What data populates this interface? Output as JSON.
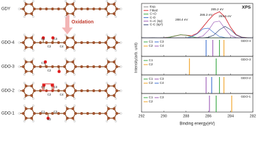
{
  "diagram": {
    "labels": [
      "GDY",
      "GDO-4",
      "GDO-3",
      "GDO-2",
      "GDO-1"
    ],
    "arrow": "Oxidation",
    "atoms": [
      [
        "C1",
        "C2",
        "C3",
        "C4"
      ],
      [
        "C1",
        "C2"
      ],
      [
        "C1",
        "C2",
        "C3",
        "C4"
      ],
      [
        "C1",
        "C2",
        "C3"
      ]
    ]
  },
  "chart_data": [
    {
      "type": "line",
      "title": "XPS",
      "x": [
        292,
        291.5,
        291,
        290.5,
        290,
        289.5,
        289,
        288.5,
        288,
        287.5,
        287,
        286.5,
        286,
        285.5,
        285,
        284.5,
        284,
        283.5,
        283,
        282.5,
        282
      ],
      "xlim": [
        292,
        282
      ],
      "ylim": [
        0,
        1.25
      ],
      "series": [
        {
          "name": "Exp.",
          "color": "#888888",
          "values": [
            0.01,
            0,
            0.01,
            0,
            0.01,
            0.03,
            0.08,
            0.12,
            0.11,
            0.08,
            0.17,
            0.43,
            0.7,
            0.92,
            1.04,
            0.8,
            0.42,
            0.13,
            0.03,
            0.01,
            0
          ]
        },
        {
          "name": "Fitted",
          "color": "#e0303a",
          "values": [
            0,
            0,
            0,
            0,
            0,
            0.02,
            0.07,
            0.12,
            0.1,
            0.08,
            0.18,
            0.42,
            0.69,
            0.93,
            1.03,
            0.82,
            0.41,
            0.12,
            0.02,
            0,
            0
          ]
        },
        {
          "name": "C=O",
          "color": "#3aa845",
          "values": [
            0,
            0,
            0,
            0,
            0,
            0.02,
            0.07,
            0.12,
            0.1,
            0.04,
            0.01,
            0,
            0,
            0,
            0,
            0,
            0,
            0,
            0,
            0,
            0
          ]
        },
        {
          "name": "C-O",
          "color": "#3b6fd0",
          "values": [
            0,
            0,
            0,
            0,
            0,
            0,
            0,
            0,
            0,
            0.04,
            0.16,
            0.35,
            0.38,
            0.2,
            0.05,
            0.01,
            0,
            0,
            0,
            0,
            0
          ]
        },
        {
          "name": "C=C (sp)",
          "color": "#9b59b6",
          "values": [
            0,
            0,
            0,
            0,
            0,
            0,
            0,
            0,
            0,
            0,
            0.01,
            0.07,
            0.29,
            0.62,
            0.66,
            0.36,
            0.09,
            0.01,
            0,
            0,
            0
          ]
        },
        {
          "name": "C-C (sp²)",
          "color": "#2c3e70",
          "values": [
            0,
            0,
            0,
            0,
            0,
            0,
            0,
            0,
            0,
            0,
            0,
            0,
            0.02,
            0.11,
            0.32,
            0.45,
            0.32,
            0.11,
            0.02,
            0,
            0
          ]
        }
      ],
      "annotations": [
        {
          "text": "288.4 eV",
          "x": 288.4
        },
        {
          "text": "286.2 eV",
          "x": 286.2
        },
        {
          "text": "285.2 eV",
          "x": 285.2
        },
        {
          "text": "284.5 eV",
          "x": 284.5
        }
      ]
    },
    {
      "type": "stick",
      "title": "GDO-4",
      "xlim": [
        292,
        282
      ],
      "series": [
        {
          "name": "C1",
          "color": "#3aa845",
          "values": [
            285.0
          ]
        },
        {
          "name": "C2",
          "color": "#f0a020",
          "values": [
            284.6
          ]
        },
        {
          "name": "C3",
          "color": "#3b6fd0",
          "values": [
            286.2
          ]
        },
        {
          "name": "C4",
          "color": "#9b59b6",
          "values": [
            285.6
          ]
        }
      ]
    },
    {
      "type": "stick",
      "title": "GDO-3",
      "xlim": [
        292,
        282
      ],
      "ylabel": "Intensity(arb. unit)",
      "series": [
        {
          "name": "C1",
          "color": "#3aa845",
          "values": [
            285.3
          ]
        },
        {
          "name": "C2",
          "color": "#f0a020",
          "values": [
            287.7
          ]
        }
      ]
    },
    {
      "type": "stick",
      "title": "GDO-2",
      "xlim": [
        292,
        282
      ],
      "series": [
        {
          "name": "C1",
          "color": "#3aa845",
          "values": [
            285.0
          ]
        },
        {
          "name": "C2",
          "color": "#f0a020",
          "values": [
            284.6
          ]
        },
        {
          "name": "C3",
          "color": "#9b59b6",
          "values": [
            286.2
          ]
        },
        {
          "name": "C4",
          "color": "#3b6fd0",
          "values": [
            285.7
          ]
        }
      ]
    },
    {
      "type": "stick",
      "title": "GDO-1",
      "xlim": [
        292,
        282
      ],
      "xlabel": "Binding energy(eV)",
      "xticks": [
        292,
        290,
        288,
        286,
        284,
        282
      ],
      "series": [
        {
          "name": "C1",
          "color": "#3aa845",
          "values": [
            285.3
          ]
        },
        {
          "name": "C2",
          "color": "#f0a020",
          "values": [
            283.9
          ]
        },
        {
          "name": "C3",
          "color": "#9b59b6",
          "values": [
            285.9
          ]
        }
      ]
    }
  ]
}
